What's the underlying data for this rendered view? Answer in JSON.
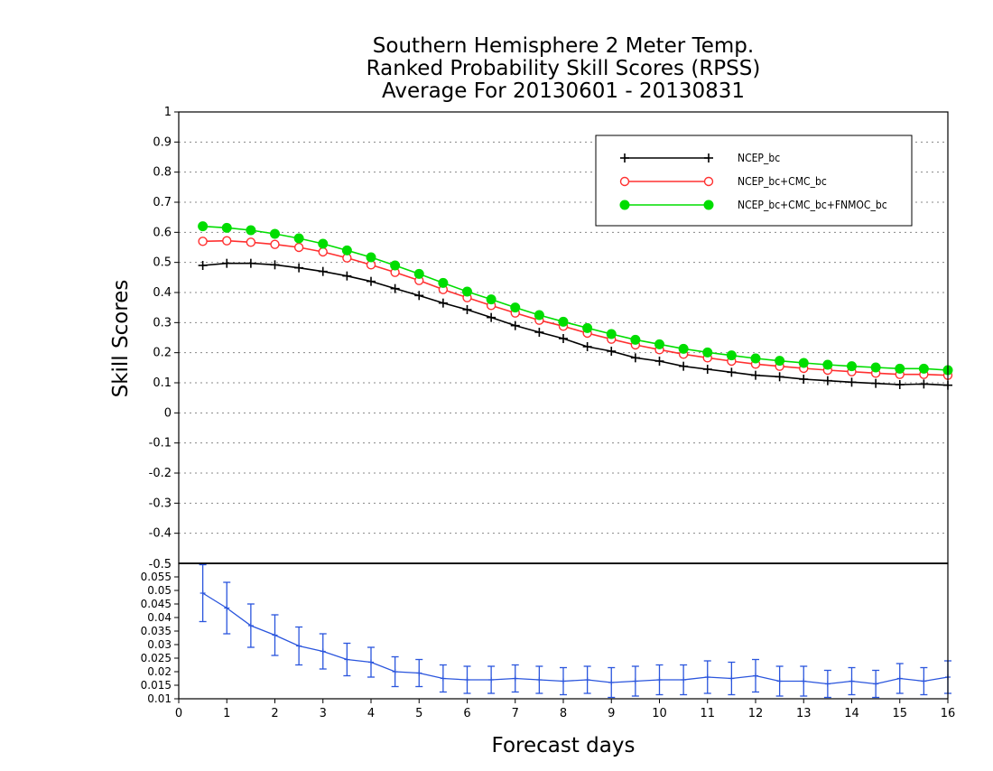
{
  "chart_data": [
    {
      "type": "line",
      "title": [
        "Southern Hemisphere 2 Meter Temp.",
        "Ranked Probability Skill Scores (RPSS)",
        "Average For 20130601 - 20130831"
      ],
      "ylabel": "Skill Scores",
      "xlabel": "Forecast days",
      "xlim": [
        0,
        16
      ],
      "ylim": [
        -0.5,
        1
      ],
      "yticks": [
        "-0.4",
        "-0.3",
        "-0.2",
        "-0.1",
        "0",
        "0.1",
        "0.2",
        "0.3",
        "0.4",
        "0.5",
        "0.6",
        "0.7",
        "0.8",
        "0.9",
        "1"
      ],
      "xticks": [
        "0",
        "1",
        "2",
        "3",
        "4",
        "5",
        "6",
        "7",
        "8",
        "9",
        "10",
        "11",
        "12",
        "13",
        "14",
        "15",
        "16"
      ],
      "corner_tick": "-0.5",
      "grid": true,
      "legend_position": "top-right",
      "x": [
        0.5,
        1,
        1.5,
        2,
        2.5,
        3,
        3.5,
        4,
        4.5,
        5,
        5.5,
        6,
        6.5,
        7,
        7.5,
        8,
        8.5,
        9,
        9.5,
        10,
        10.5,
        11,
        11.5,
        12,
        12.5,
        13,
        13.5,
        14,
        14.5,
        15,
        15.5,
        16
      ],
      "series": [
        {
          "name": "NCEP_bc",
          "color": "#000000",
          "marker": "plus",
          "values": [
            0.49,
            0.497,
            0.497,
            0.492,
            0.482,
            0.47,
            0.455,
            0.437,
            0.413,
            0.39,
            0.365,
            0.343,
            0.317,
            0.29,
            0.268,
            0.247,
            0.22,
            0.205,
            0.183,
            0.172,
            0.155,
            0.145,
            0.135,
            0.125,
            0.12,
            0.112,
            0.107,
            0.102,
            0.098,
            0.094,
            0.096,
            0.092
          ]
        },
        {
          "name": "NCEP_bc+CMC_bc",
          "color": "#ff3030",
          "marker": "open-circle",
          "values": [
            0.57,
            0.572,
            0.567,
            0.56,
            0.55,
            0.535,
            0.515,
            0.492,
            0.467,
            0.44,
            0.41,
            0.383,
            0.357,
            0.332,
            0.308,
            0.288,
            0.265,
            0.245,
            0.226,
            0.21,
            0.195,
            0.183,
            0.172,
            0.162,
            0.155,
            0.148,
            0.142,
            0.137,
            0.132,
            0.128,
            0.128,
            0.125
          ]
        },
        {
          "name": "NCEP_bc+CMC_bc+FNMOC_bc",
          "color": "#00dd00",
          "marker": "filled-circle",
          "values": [
            0.62,
            0.615,
            0.607,
            0.595,
            0.58,
            0.562,
            0.54,
            0.517,
            0.49,
            0.462,
            0.432,
            0.403,
            0.377,
            0.35,
            0.325,
            0.303,
            0.282,
            0.262,
            0.243,
            0.228,
            0.213,
            0.201,
            0.191,
            0.181,
            0.173,
            0.166,
            0.16,
            0.155,
            0.151,
            0.147,
            0.147,
            0.142
          ]
        }
      ]
    },
    {
      "type": "line",
      "xlim": [
        0,
        16
      ],
      "ylim": [
        0.01,
        0.06
      ],
      "yticks": [
        "0.01",
        "0.015",
        "0.02",
        "0.025",
        "0.03",
        "0.035",
        "0.04",
        "0.045",
        "0.05",
        "0.055"
      ],
      "color": "#2a55dd",
      "x": [
        0.5,
        1,
        1.5,
        2,
        2.5,
        3,
        3.5,
        4,
        4.5,
        5,
        5.5,
        6,
        6.5,
        7,
        7.5,
        8,
        8.5,
        9,
        9.5,
        10,
        10.5,
        11,
        11.5,
        12,
        12.5,
        13,
        13.5,
        14,
        14.5,
        15,
        15.5,
        16
      ],
      "values": [
        0.049,
        0.0435,
        0.037,
        0.0335,
        0.0295,
        0.0275,
        0.0245,
        0.0235,
        0.02,
        0.0195,
        0.0175,
        0.017,
        0.017,
        0.0175,
        0.017,
        0.0165,
        0.017,
        0.016,
        0.0165,
        0.017,
        0.017,
        0.018,
        0.0175,
        0.0185,
        0.0165,
        0.0165,
        0.0155,
        0.0165,
        0.0155,
        0.0175,
        0.0165,
        0.018
      ],
      "err": [
        0.0105,
        0.0095,
        0.008,
        0.0075,
        0.007,
        0.0065,
        0.006,
        0.0055,
        0.0055,
        0.005,
        0.005,
        0.005,
        0.005,
        0.005,
        0.005,
        0.005,
        0.005,
        0.0055,
        0.0055,
        0.0055,
        0.0055,
        0.006,
        0.006,
        0.006,
        0.0055,
        0.0055,
        0.005,
        0.005,
        0.005,
        0.0055,
        0.005,
        0.006
      ]
    }
  ]
}
